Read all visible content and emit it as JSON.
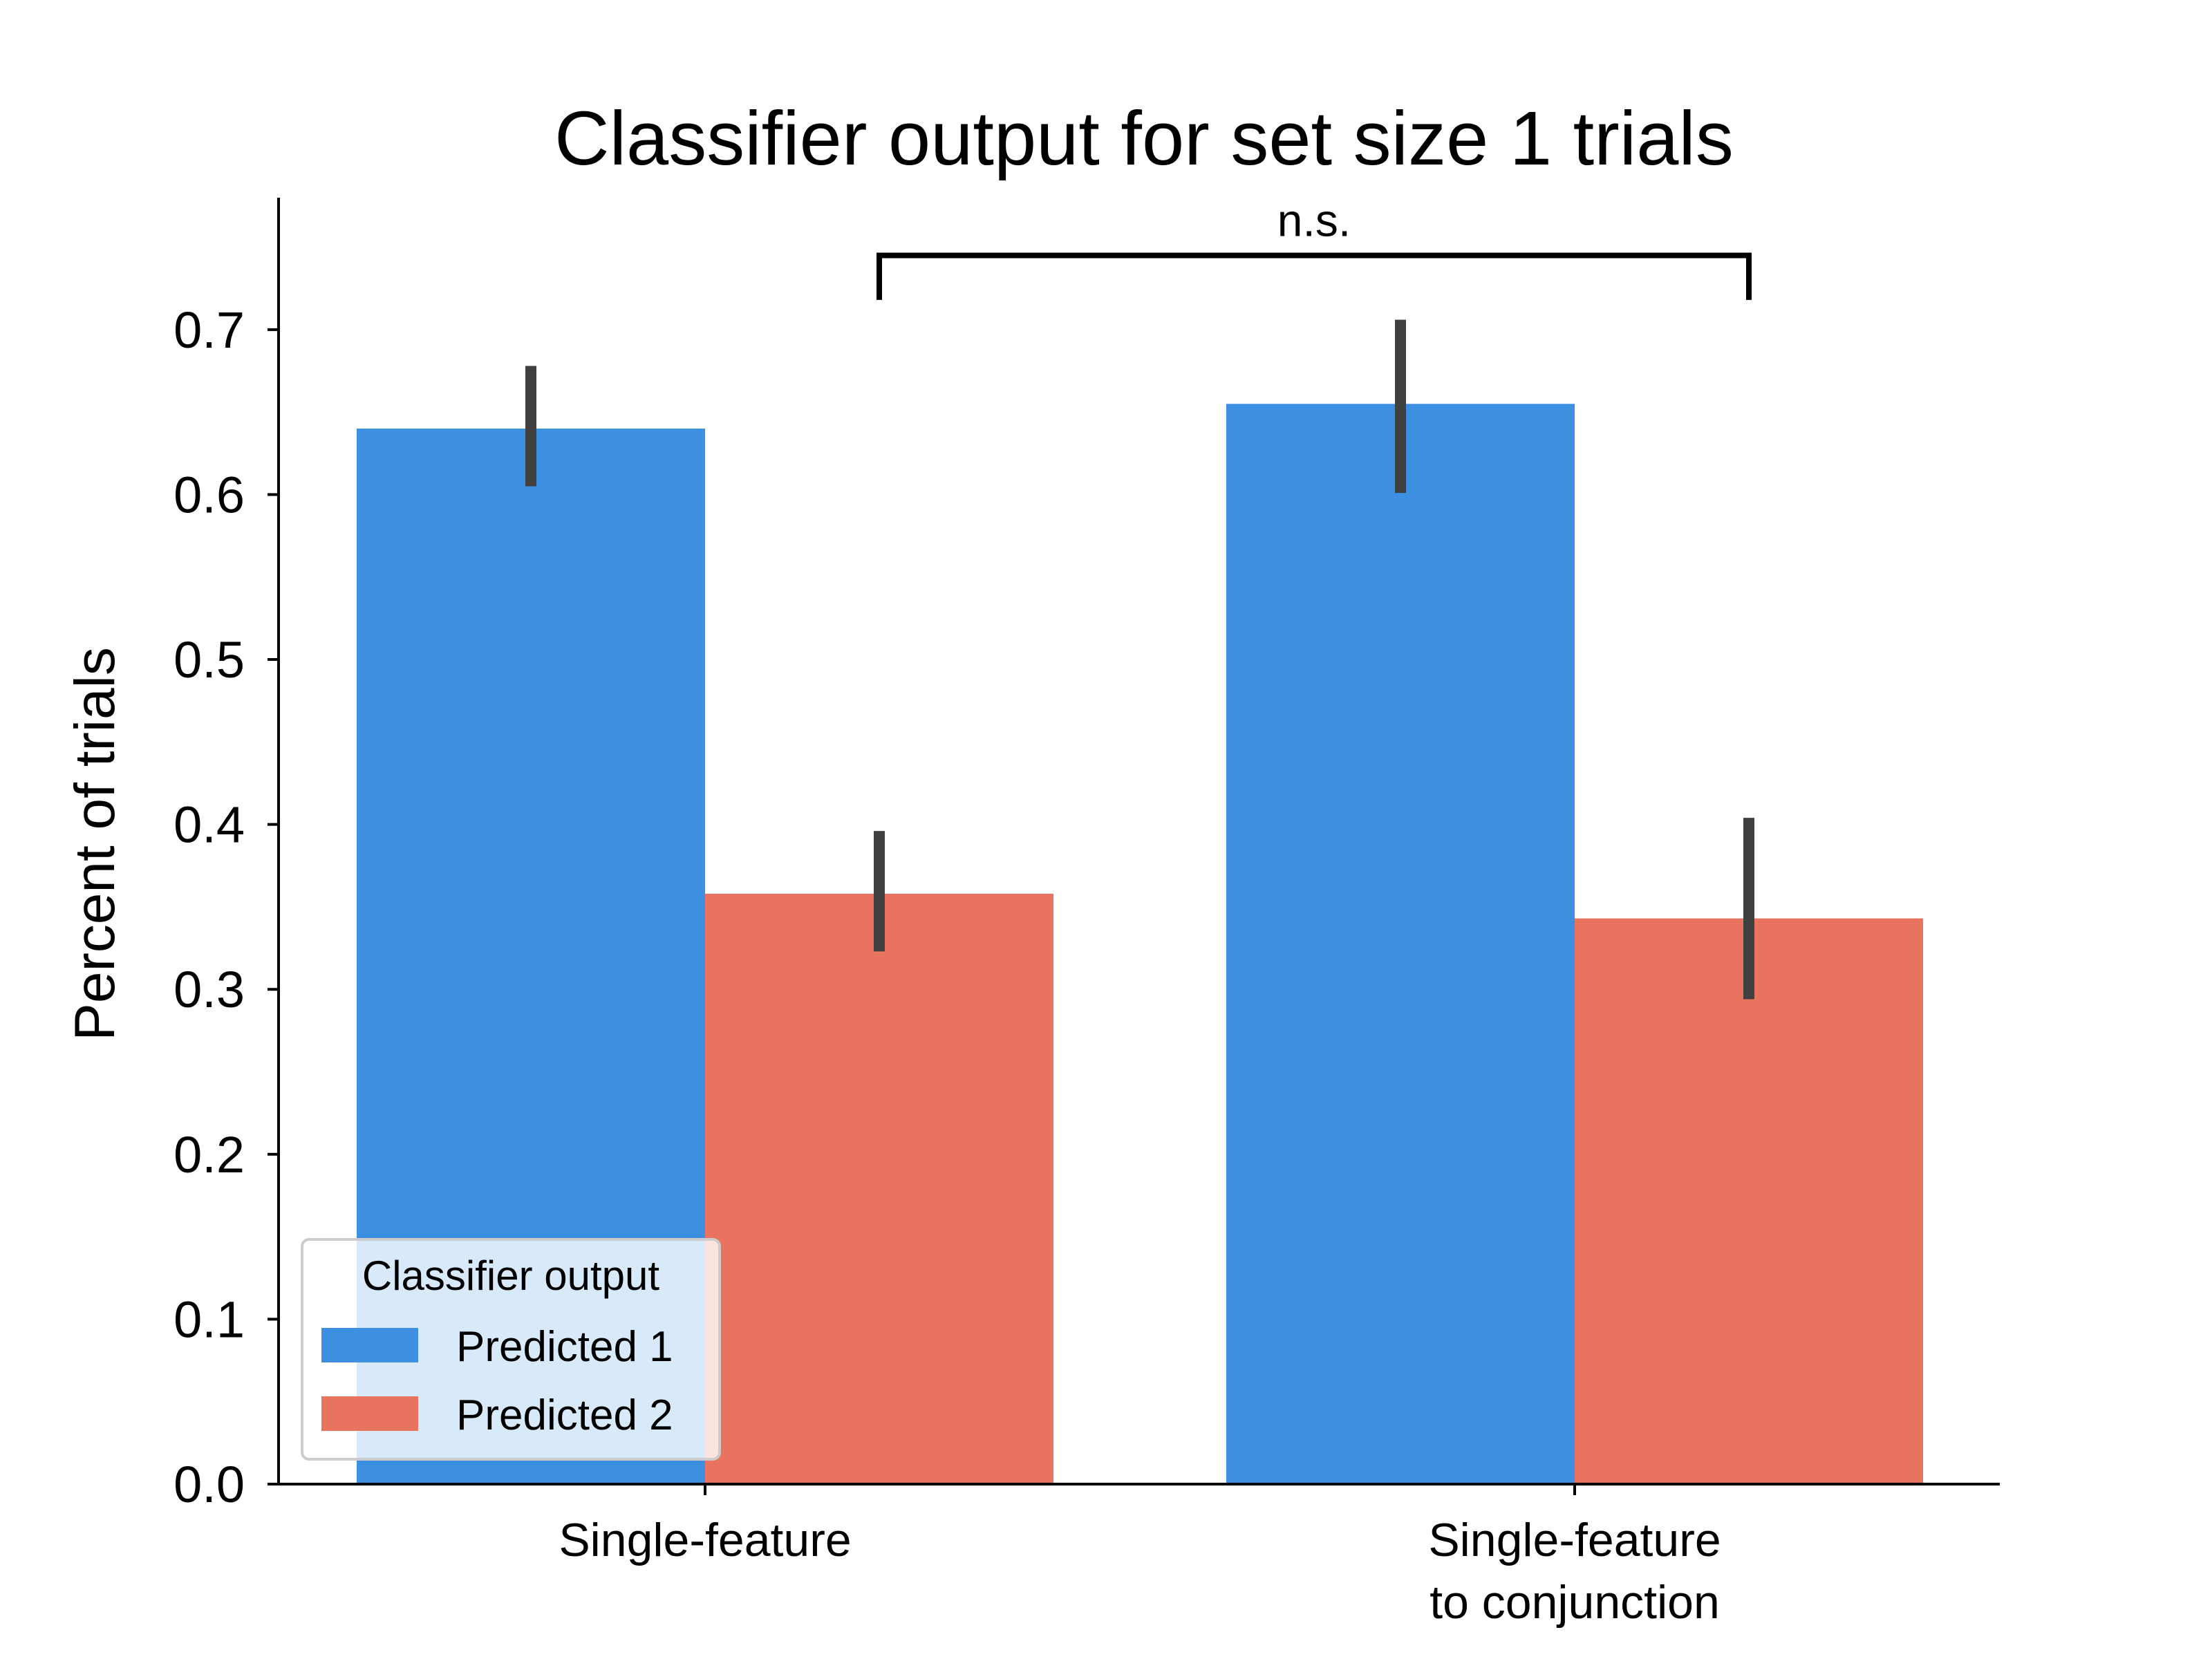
{
  "chart_data": {
    "type": "bar",
    "title": "Classifier output for set size 1 trials",
    "xlabel": "",
    "ylabel": "Percent of trials",
    "ylim": [
      0,
      0.78
    ],
    "yticks": [
      "0.0",
      "0.1",
      "0.2",
      "0.3",
      "0.4",
      "0.5",
      "0.6",
      "0.7"
    ],
    "categories": [
      [
        "Single-feature"
      ],
      [
        "Single-feature",
        "to conjunction"
      ]
    ],
    "series": [
      {
        "name": "Predicted 1",
        "color": "#3d8fe2",
        "values": [
          0.64,
          0.655
        ],
        "error_low": [
          0.605,
          0.601
        ],
        "error_high": [
          0.678,
          0.706
        ]
      },
      {
        "name": "Predicted 2",
        "color": "#e8735f",
        "values": [
          0.358,
          0.343
        ],
        "error_low": [
          0.323,
          0.294
        ],
        "error_high": [
          0.396,
          0.404
        ]
      }
    ],
    "error_bar_color": "#404040",
    "legend": {
      "title": "Classifier output",
      "placement": "lower-left"
    },
    "annotation": {
      "text": "n.s.",
      "between": "Predicted 2 bars of both categories"
    },
    "grid": false
  }
}
